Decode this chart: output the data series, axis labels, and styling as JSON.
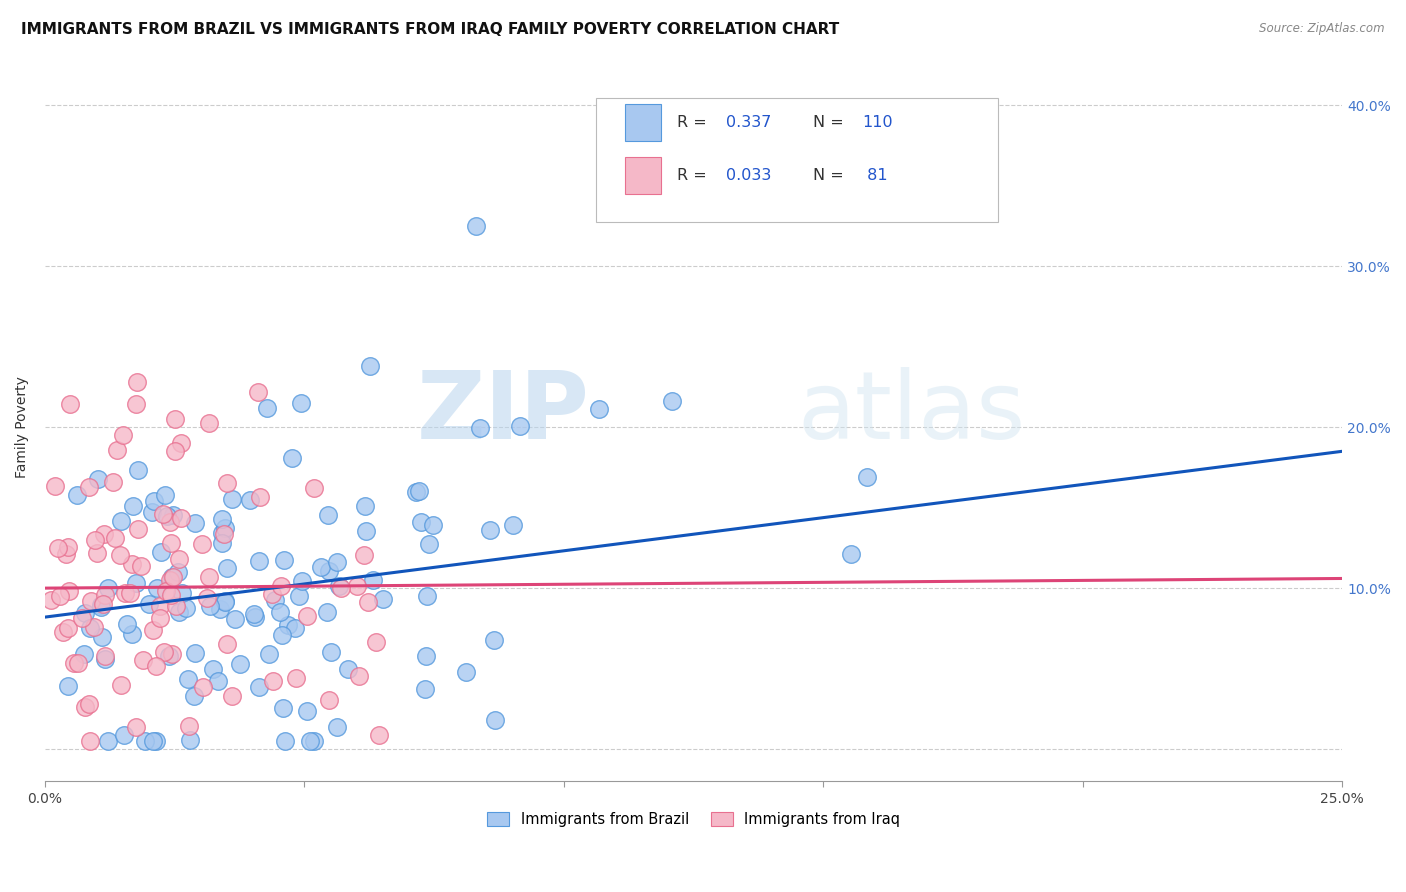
{
  "title": "IMMIGRANTS FROM BRAZIL VS IMMIGRANTS FROM IRAQ FAMILY POVERTY CORRELATION CHART",
  "source": "Source: ZipAtlas.com",
  "ylabel": "Family Poverty",
  "xlim": [
    0.0,
    0.25
  ],
  "ylim": [
    -0.02,
    0.42
  ],
  "brazil_R": 0.337,
  "brazil_N": 110,
  "iraq_R": 0.033,
  "iraq_N": 81,
  "brazil_color": "#a8c8f0",
  "brazil_edge_color": "#5599dd",
  "iraq_color": "#f5b8c8",
  "iraq_edge_color": "#e87090",
  "brazil_line_color": "#1155bb",
  "iraq_line_color": "#dd4477",
  "watermark_color": "#cce0f5",
  "background_color": "#ffffff",
  "grid_color": "#cccccc",
  "title_fontsize": 11,
  "axis_label_fontsize": 10,
  "tick_fontsize": 10,
  "brazil_trendline_x0": 0.0,
  "brazil_trendline_y0": 0.082,
  "brazil_trendline_x1": 0.25,
  "brazil_trendline_y1": 0.185,
  "iraq_trendline_x0": 0.0,
  "iraq_trendline_y0": 0.1,
  "iraq_trendline_x1": 0.25,
  "iraq_trendline_y1": 0.106
}
